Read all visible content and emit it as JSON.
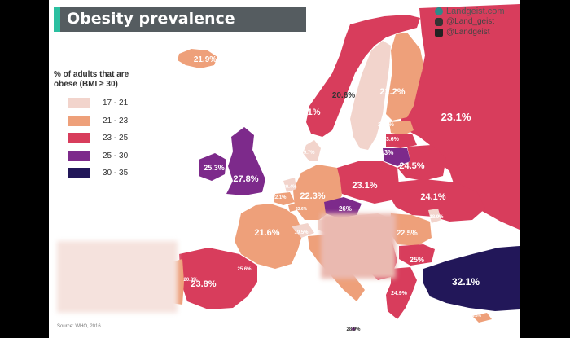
{
  "title": "Obesity prevalence",
  "brand": {
    "site": "Landgeist.com",
    "handles": [
      "@Land_geist",
      "@Landgeist"
    ]
  },
  "legend": {
    "title_lines": [
      "% of adults that are",
      "obese (BMI ≥ 30)"
    ],
    "items": [
      {
        "label": "17 - 21",
        "color": "#f2d4cc"
      },
      {
        "label": "21 - 23",
        "color": "#eea07a"
      },
      {
        "label": "23 - 25",
        "color": "#d83d5c"
      },
      {
        "label": "25 - 30",
        "color": "#7d2a8b"
      },
      {
        "label": "30 - 35",
        "color": "#221759"
      }
    ]
  },
  "source": "Source: WHO, 2016",
  "map_labels": {
    "iceland": "21.9%",
    "norway": "23.1%",
    "sweden": "20.6%",
    "finland": "22.2%",
    "russia": "23.1%",
    "estonia": "21.2%",
    "latvia": "23.6%",
    "lithuania": "26.3%",
    "belarus": "24.5%",
    "ireland": "25.3%",
    "uk": "27.8%",
    "denmark": "19.7%",
    "netherlands": "20.4%",
    "belgium": "22.1%",
    "luxembourg": "22.6%",
    "germany": "22.3%",
    "poland": "23.1%",
    "czechia": "26%",
    "ukraine": "24.1%",
    "france": "21.6%",
    "switzerland": "19.5%",
    "moldova": "18.9%",
    "romania": "22.5%",
    "bulgaria": "25%",
    "greece": "24.9%",
    "turkey": "32.1%",
    "cyprus": "21.6%",
    "spain": "23.8%",
    "portugal": "20.8%",
    "andorra": "25.6%",
    "malta": "28.9%"
  }
}
